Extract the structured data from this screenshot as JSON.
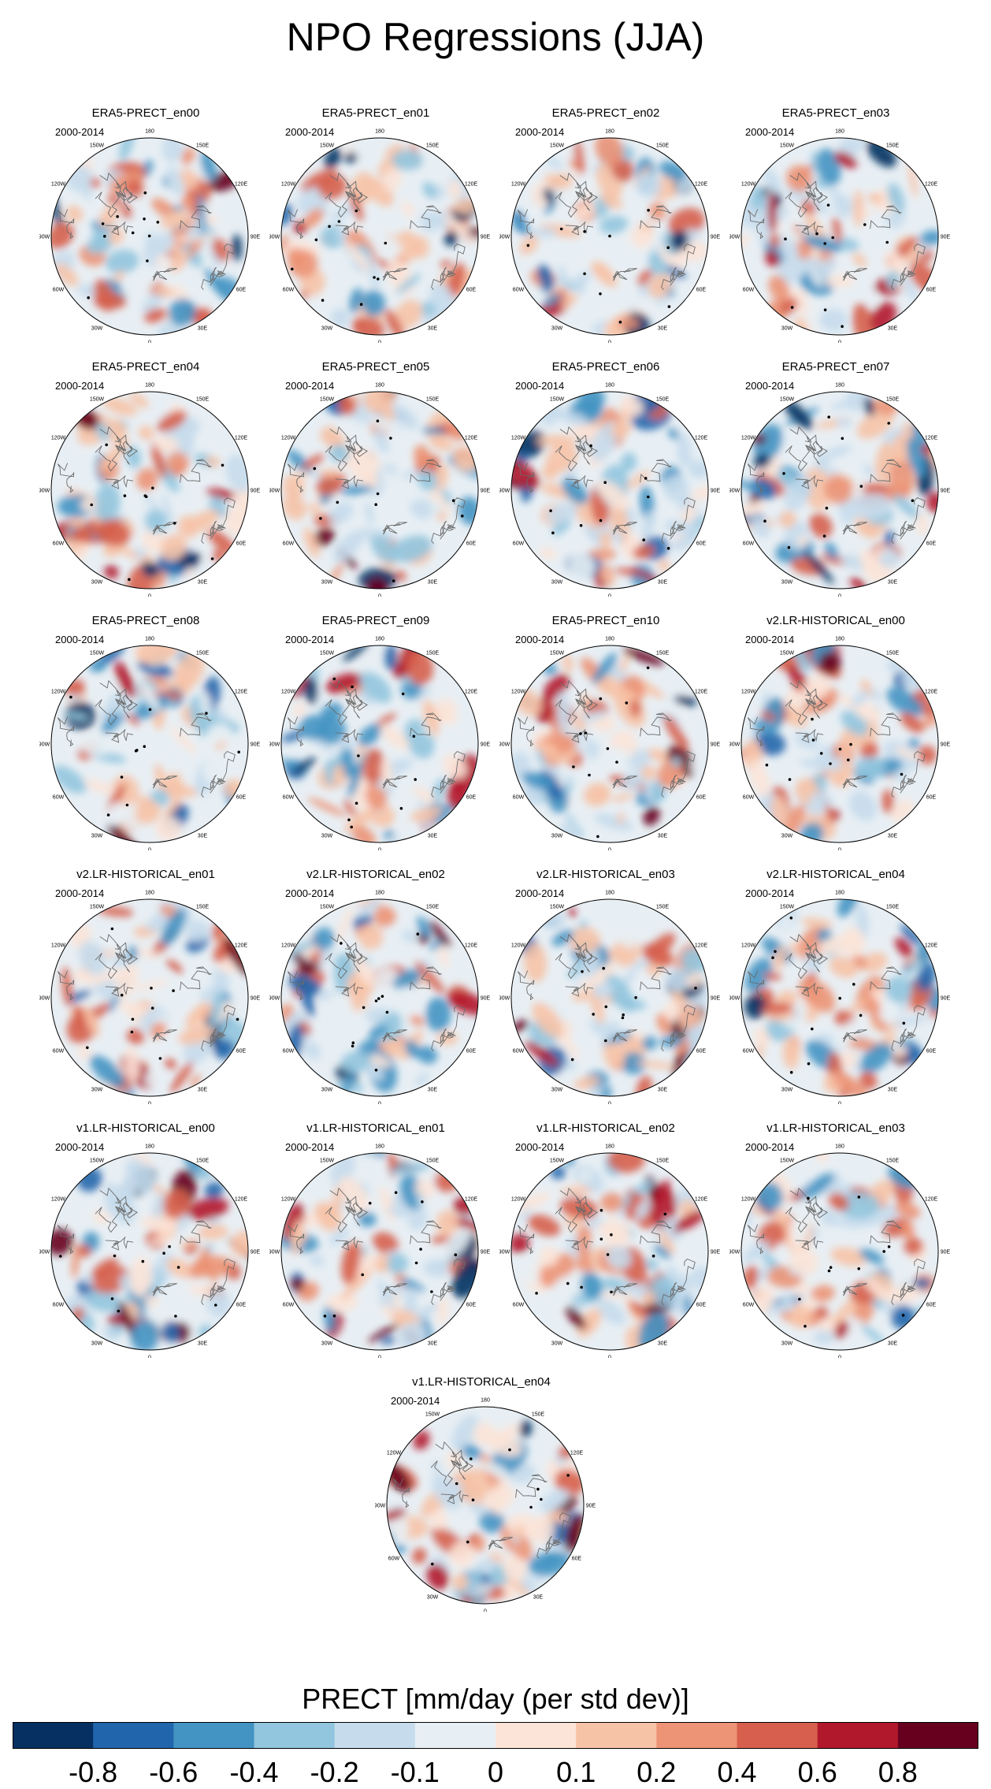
{
  "title": "NPO Regressions (JJA)",
  "colorbar": {
    "label": "PRECT [mm/day (per std dev)]",
    "colors": [
      "#053061",
      "#2166ac",
      "#4393c3",
      "#92c5de",
      "#c6dcec",
      "#e8eff4",
      "#fce4d8",
      "#f7c3a7",
      "#ec9475",
      "#d6604d",
      "#b2182b",
      "#67001f"
    ],
    "ticks": [
      "-0.8",
      "-0.6",
      "-0.4",
      "-0.2",
      "-0.1",
      "0",
      "0.1",
      "0.2",
      "0.4",
      "0.6",
      "0.8"
    ]
  },
  "chart_data": {
    "type": "heatmap",
    "projection": "north polar stereographic",
    "variable": "PRECT",
    "units": "mm/day (per std dev)",
    "season": "JJA",
    "period": "2000-2014",
    "levels": [
      -0.8,
      -0.6,
      -0.4,
      -0.2,
      -0.1,
      0,
      0.1,
      0.2,
      0.4,
      0.6,
      0.8
    ],
    "longitude_labels": [
      "180",
      "150E",
      "120E",
      "90E",
      "60E",
      "30E",
      "0",
      "30W",
      "60W",
      "90W",
      "120W",
      "150W"
    ],
    "panels": [
      {
        "title": "ERA5-PRECT_en00",
        "period": "2000-2014"
      },
      {
        "title": "ERA5-PRECT_en01",
        "period": "2000-2014"
      },
      {
        "title": "ERA5-PRECT_en02",
        "period": "2000-2014"
      },
      {
        "title": "ERA5-PRECT_en03",
        "period": "2000-2014"
      },
      {
        "title": "ERA5-PRECT_en04",
        "period": "2000-2014"
      },
      {
        "title": "ERA5-PRECT_en05",
        "period": "2000-2014"
      },
      {
        "title": "ERA5-PRECT_en06",
        "period": "2000-2014"
      },
      {
        "title": "ERA5-PRECT_en07",
        "period": "2000-2014"
      },
      {
        "title": "ERA5-PRECT_en08",
        "period": "2000-2014"
      },
      {
        "title": "ERA5-PRECT_en09",
        "period": "2000-2014"
      },
      {
        "title": "ERA5-PRECT_en10",
        "period": "2000-2014"
      },
      {
        "title": "v2.LR-HISTORICAL_en00",
        "period": "2000-2014"
      },
      {
        "title": "v2.LR-HISTORICAL_en01",
        "period": "2000-2014"
      },
      {
        "title": "v2.LR-HISTORICAL_en02",
        "period": "2000-2014"
      },
      {
        "title": "v2.LR-HISTORICAL_en03",
        "period": "2000-2014"
      },
      {
        "title": "v2.LR-HISTORICAL_en04",
        "period": "2000-2014"
      },
      {
        "title": "v1.LR-HISTORICAL_en00",
        "period": "2000-2014"
      },
      {
        "title": "v1.LR-HISTORICAL_en01",
        "period": "2000-2014"
      },
      {
        "title": "v1.LR-HISTORICAL_en02",
        "period": "2000-2014"
      },
      {
        "title": "v1.LR-HISTORICAL_en03",
        "period": "2000-2014"
      },
      {
        "title": "v1.LR-HISTORICAL_en04",
        "period": "2000-2014"
      }
    ]
  }
}
